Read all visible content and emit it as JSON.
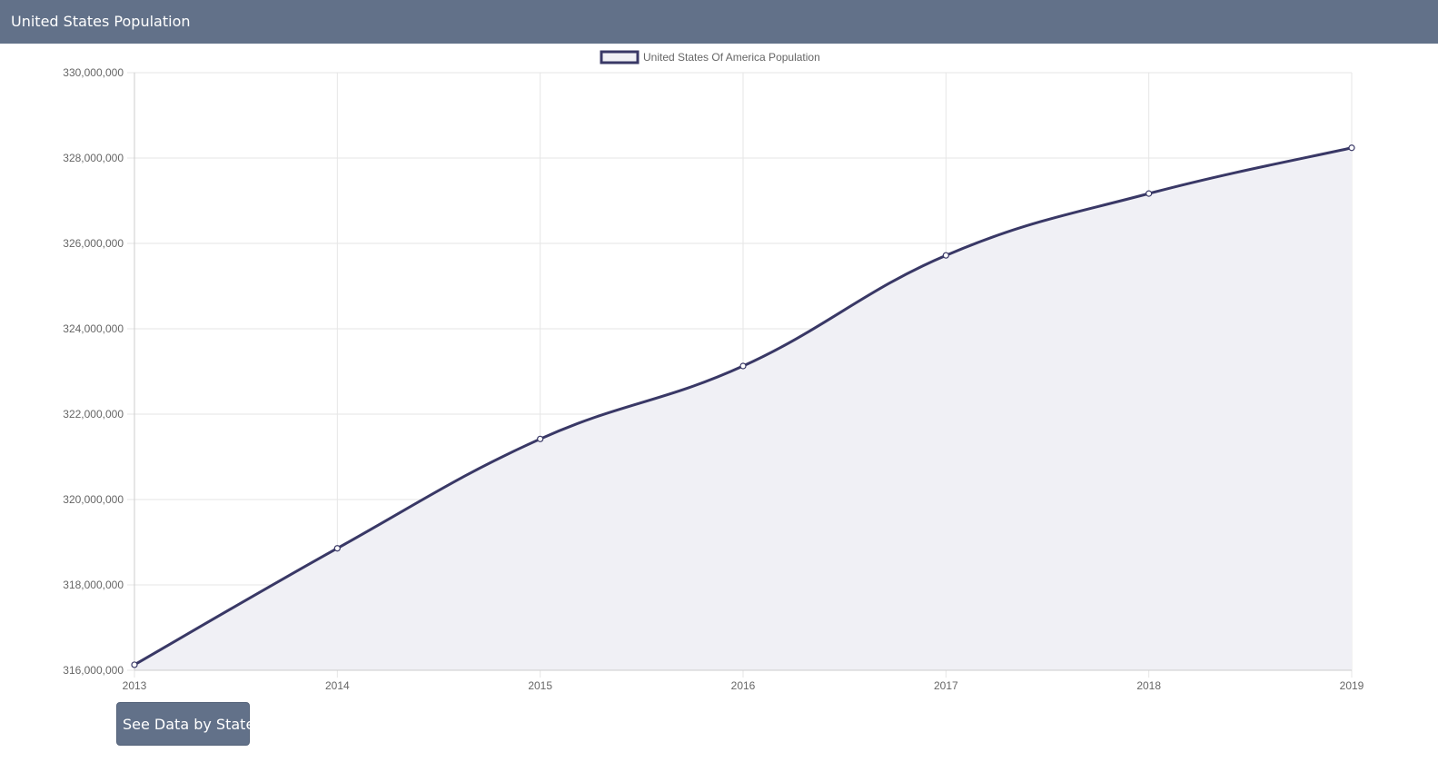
{
  "header": {
    "title": "United States Population"
  },
  "actions": {
    "see_by_state_label": "See Data by State"
  },
  "colors": {
    "navbar": "#627189",
    "line": "#393866",
    "fill": "#f0f0f5",
    "grid": "#e6e6e6",
    "tick_text": "#666666"
  },
  "chart_data": {
    "type": "area",
    "title": "",
    "legend_position": "top-center",
    "categories": [
      "2013",
      "2014",
      "2015",
      "2016",
      "2017",
      "2018",
      "2019"
    ],
    "series": [
      {
        "name": "United States Of America Population",
        "values": [
          316128839,
          318857056,
          321418820,
          323127513,
          325719178,
          327167434,
          328239523
        ]
      }
    ],
    "xlabel": "",
    "ylabel": "",
    "ylim": [
      316000000,
      330000000
    ],
    "y_ticks": [
      "316,000,000",
      "318,000,000",
      "320,000,000",
      "322,000,000",
      "324,000,000",
      "326,000,000",
      "328,000,000",
      "330,000,000"
    ],
    "grid": true
  }
}
